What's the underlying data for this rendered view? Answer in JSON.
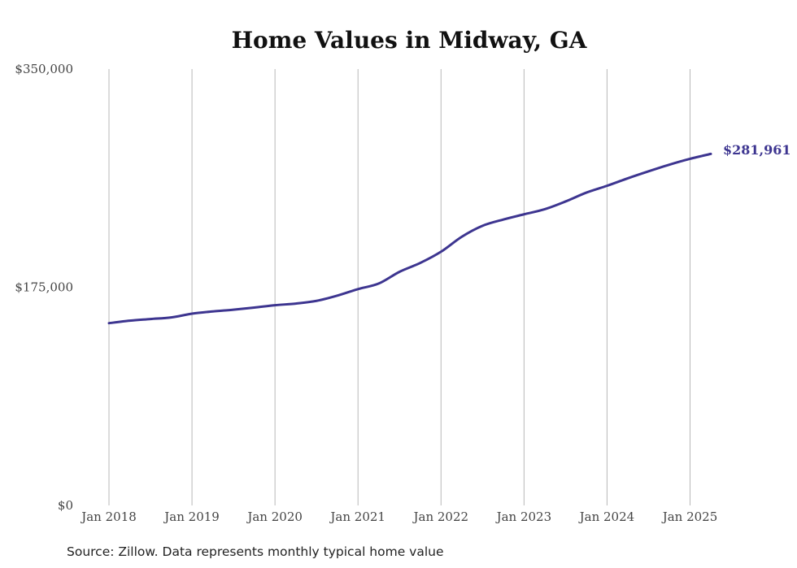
{
  "chart_data": {
    "type": "line",
    "title": "Home Values in Midway, GA",
    "xlabel": "",
    "ylabel": "",
    "source": "Source: Zillow. Data represents monthly typical home value",
    "x_range": [
      "2018-01",
      "2025-04"
    ],
    "ylim": [
      0,
      350000
    ],
    "y_ticks": [
      {
        "value": 0,
        "label": "$0"
      },
      {
        "value": 175000,
        "label": "$175,000"
      },
      {
        "value": 350000,
        "label": "$350,000"
      }
    ],
    "x_ticks": [
      {
        "date": "2018-01",
        "label": "Jan 2018"
      },
      {
        "date": "2019-01",
        "label": "Jan 2019"
      },
      {
        "date": "2020-01",
        "label": "Jan 2020"
      },
      {
        "date": "2021-01",
        "label": "Jan 2021"
      },
      {
        "date": "2022-01",
        "label": "Jan 2022"
      },
      {
        "date": "2023-01",
        "label": "Jan 2023"
      },
      {
        "date": "2024-01",
        "label": "Jan 2024"
      },
      {
        "date": "2025-01",
        "label": "Jan 2025"
      }
    ],
    "grid": "vertical",
    "line_color": "#3d3590",
    "end_label": "$281,961",
    "series": [
      {
        "points": [
          {
            "x": "2018-01",
            "y": 146200
          },
          {
            "x": "2018-04",
            "y": 148200
          },
          {
            "x": "2018-07",
            "y": 149500
          },
          {
            "x": "2018-10",
            "y": 150800
          },
          {
            "x": "2019-01",
            "y": 153800
          },
          {
            "x": "2019-04",
            "y": 155600
          },
          {
            "x": "2019-07",
            "y": 157000
          },
          {
            "x": "2019-10",
            "y": 158700
          },
          {
            "x": "2020-01",
            "y": 160600
          },
          {
            "x": "2020-04",
            "y": 161900
          },
          {
            "x": "2020-07",
            "y": 164100
          },
          {
            "x": "2020-10",
            "y": 168300
          },
          {
            "x": "2021-01",
            "y": 173500
          },
          {
            "x": "2021-04",
            "y": 178000
          },
          {
            "x": "2021-07",
            "y": 187400
          },
          {
            "x": "2021-10",
            "y": 194500
          },
          {
            "x": "2022-01",
            "y": 203500
          },
          {
            "x": "2022-04",
            "y": 215500
          },
          {
            "x": "2022-07",
            "y": 224300
          },
          {
            "x": "2022-10",
            "y": 229300
          },
          {
            "x": "2023-01",
            "y": 233500
          },
          {
            "x": "2023-04",
            "y": 237600
          },
          {
            "x": "2023-07",
            "y": 243800
          },
          {
            "x": "2023-10",
            "y": 250900
          },
          {
            "x": "2024-01",
            "y": 256400
          },
          {
            "x": "2024-04",
            "y": 262400
          },
          {
            "x": "2024-07",
            "y": 268000
          },
          {
            "x": "2024-10",
            "y": 273300
          },
          {
            "x": "2025-01",
            "y": 278000
          },
          {
            "x": "2025-04",
            "y": 281961
          }
        ]
      }
    ]
  }
}
